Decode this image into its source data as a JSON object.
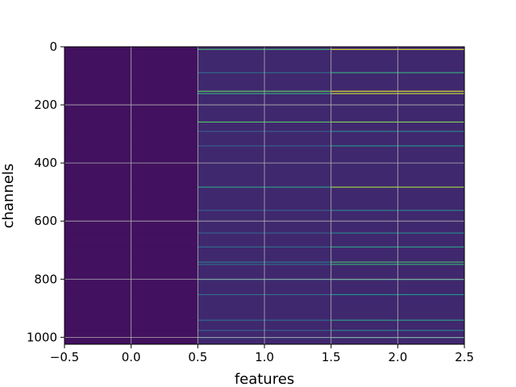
{
  "chart_data": {
    "type": "heatmap",
    "title": "",
    "xlabel": "features",
    "ylabel": "channels",
    "xlim": [
      -0.5,
      2.5
    ],
    "ylim": [
      1024,
      0
    ],
    "x_ticks": [
      -0.5,
      0.0,
      0.5,
      1.0,
      1.5,
      2.0,
      2.5
    ],
    "x_tick_labels": [
      "−0.5",
      "0.0",
      "0.5",
      "1.0",
      "1.5",
      "2.0",
      "2.5"
    ],
    "y_ticks": [
      0,
      200,
      400,
      600,
      800,
      1000
    ],
    "y_tick_labels": [
      "0",
      "200",
      "400",
      "600",
      "800",
      "1000"
    ],
    "grid": true,
    "colormap": "viridis",
    "columns": 3,
    "rows": 1024,
    "background_levels": [
      0.05,
      0.12,
      0.12
    ],
    "highlighted_rows": [
      {
        "row": 8,
        "values": [
          0.05,
          0.65,
          0.95
        ]
      },
      {
        "row": 88,
        "values": [
          0.05,
          0.35,
          0.6
        ]
      },
      {
        "row": 152,
        "values": [
          0.05,
          0.75,
          0.95
        ]
      },
      {
        "row": 160,
        "values": [
          0.05,
          0.6,
          0.9
        ]
      },
      {
        "row": 258,
        "values": [
          0.05,
          0.7,
          0.8
        ]
      },
      {
        "row": 290,
        "values": [
          0.05,
          0.3,
          0.45
        ]
      },
      {
        "row": 340,
        "values": [
          0.05,
          0.3,
          0.5
        ]
      },
      {
        "row": 482,
        "values": [
          0.05,
          0.55,
          0.85
        ]
      },
      {
        "row": 562,
        "values": [
          0.05,
          0.3,
          0.45
        ]
      },
      {
        "row": 640,
        "values": [
          0.05,
          0.3,
          0.45
        ]
      },
      {
        "row": 688,
        "values": [
          0.05,
          0.35,
          0.55
        ]
      },
      {
        "row": 740,
        "values": [
          0.05,
          0.4,
          0.65
        ]
      },
      {
        "row": 748,
        "values": [
          0.05,
          0.35,
          0.6
        ]
      },
      {
        "row": 800,
        "values": [
          0.05,
          0.4,
          0.55
        ]
      },
      {
        "row": 852,
        "values": [
          0.05,
          0.35,
          0.5
        ]
      },
      {
        "row": 940,
        "values": [
          0.05,
          0.35,
          0.55
        ]
      },
      {
        "row": 975,
        "values": [
          0.05,
          0.3,
          0.45
        ]
      },
      {
        "row": 1000,
        "values": [
          0.05,
          0.3,
          0.45
        ]
      }
    ]
  }
}
